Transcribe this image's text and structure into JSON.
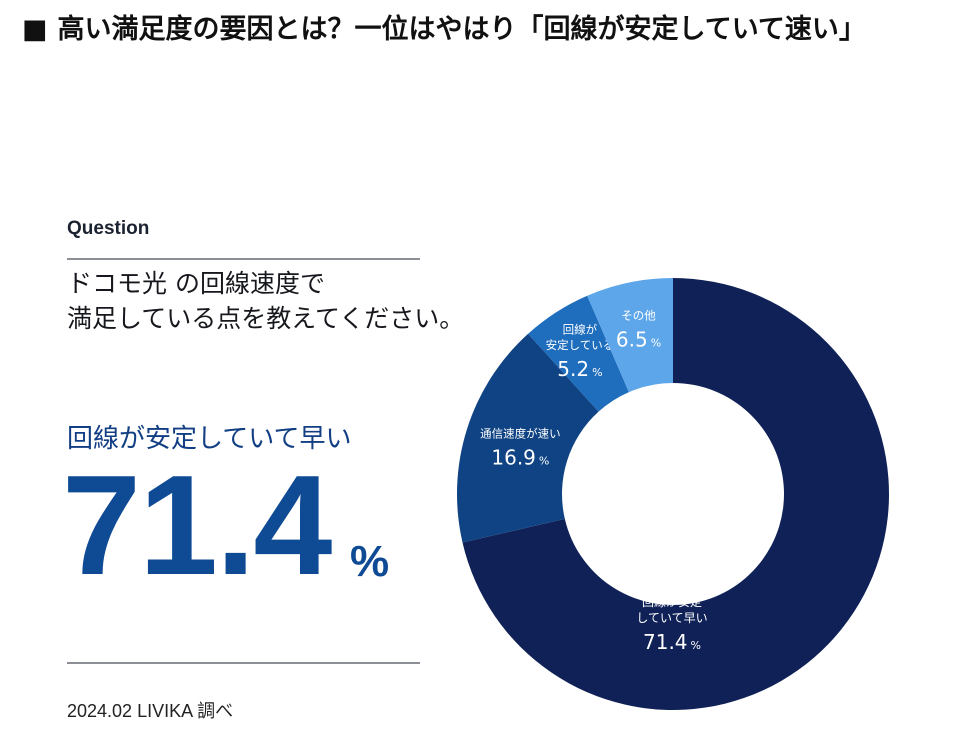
{
  "heading": {
    "bullet": "■",
    "text": "高い満足度の要因とは？一位はやはり「回線が安定していて速い」"
  },
  "question_label": "Question",
  "question_text": [
    "ドコモ光 の回線速度で",
    "満足している点を教えてください。"
  ],
  "highlight": {
    "label": "回線が安定していて早い",
    "value": "71.4",
    "unit": "%"
  },
  "source": "2024.02 LIVIKA 調べ",
  "chart_data": {
    "type": "pie",
    "donut": true,
    "unit": "%",
    "slices": [
      {
        "label": [
          "回線が安定",
          "していて早い"
        ],
        "value": 71.4,
        "value_text": "71.4",
        "color": "#0f2157"
      },
      {
        "label": [
          "通信速度が速い"
        ],
        "value": 16.9,
        "value_text": "16.9",
        "color": "#0f4383"
      },
      {
        "label": [
          "回線が",
          "安定している"
        ],
        "value": 5.2,
        "value_text": "5.2",
        "color": "#1f6dbd"
      },
      {
        "label": [
          "その他"
        ],
        "value": 6.5,
        "value_text": "6.5",
        "color": "#5ea6ea"
      }
    ]
  }
}
